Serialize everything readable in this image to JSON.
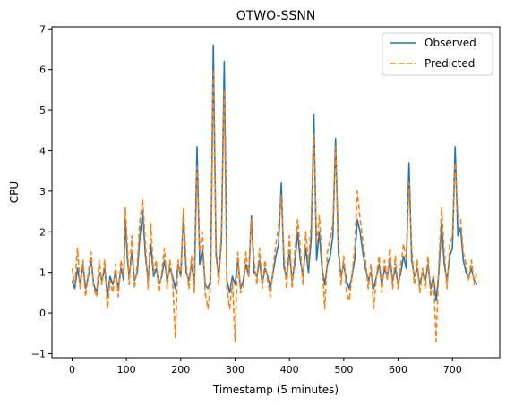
{
  "chart_data": {
    "type": "line",
    "title": "OTWO-SSNN",
    "xlabel": "Timestamp (5 minutes)",
    "ylabel": "CPU",
    "xlim": [
      -37,
      787
    ],
    "ylim": [
      -1.1,
      7.05
    ],
    "xticks": [
      0,
      100,
      200,
      300,
      400,
      500,
      600,
      700
    ],
    "yticks": [
      -1,
      0,
      1,
      2,
      3,
      4,
      5,
      6,
      7
    ],
    "grid": false,
    "legend_position": "top-right",
    "series": [
      {
        "name": "Observed",
        "color": "#1f77b4",
        "style": "solid",
        "points": [
          [
            0,
            0.8
          ],
          [
            5,
            0.6
          ],
          [
            10,
            1.1
          ],
          [
            15,
            0.7
          ],
          [
            20,
            1.2
          ],
          [
            25,
            0.6
          ],
          [
            30,
            0.9
          ],
          [
            35,
            1.3
          ],
          [
            40,
            0.7
          ],
          [
            45,
            0.5
          ],
          [
            50,
            1.0
          ],
          [
            55,
            0.8
          ],
          [
            60,
            1.1
          ],
          [
            65,
            0.4
          ],
          [
            70,
            0.9
          ],
          [
            75,
            0.7
          ],
          [
            80,
            1.0
          ],
          [
            85,
            0.6
          ],
          [
            90,
            1.1
          ],
          [
            95,
            0.8
          ],
          [
            98,
            2.3
          ],
          [
            102,
            1.3
          ],
          [
            105,
            0.9
          ],
          [
            110,
            1.5
          ],
          [
            115,
            0.8
          ],
          [
            120,
            1.0
          ],
          [
            125,
            1.9
          ],
          [
            130,
            2.5
          ],
          [
            135,
            1.4
          ],
          [
            140,
            0.8
          ],
          [
            145,
            1.7
          ],
          [
            150,
            0.9
          ],
          [
            155,
            1.1
          ],
          [
            160,
            0.7
          ],
          [
            165,
            0.9
          ],
          [
            170,
            1.3
          ],
          [
            175,
            0.8
          ],
          [
            180,
            1.1
          ],
          [
            185,
            0.9
          ],
          [
            190,
            0.6
          ],
          [
            195,
            1.2
          ],
          [
            200,
            0.9
          ],
          [
            205,
            2.4
          ],
          [
            210,
            1.0
          ],
          [
            215,
            0.8
          ],
          [
            220,
            1.2
          ],
          [
            225,
            0.7
          ],
          [
            230,
            4.1
          ],
          [
            235,
            1.2
          ],
          [
            240,
            1.6
          ],
          [
            245,
            0.7
          ],
          [
            250,
            0.6
          ],
          [
            255,
            0.8
          ],
          [
            260,
            6.6
          ],
          [
            265,
            1.4
          ],
          [
            270,
            0.9
          ],
          [
            275,
            1.8
          ],
          [
            280,
            6.2
          ],
          [
            285,
            0.8
          ],
          [
            290,
            0.5
          ],
          [
            295,
            0.9
          ],
          [
            300,
            0.7
          ],
          [
            305,
            1.3
          ],
          [
            310,
            0.6
          ],
          [
            315,
            0.8
          ],
          [
            320,
            1.2
          ],
          [
            325,
            0.9
          ],
          [
            330,
            2.4
          ],
          [
            335,
            1.0
          ],
          [
            340,
            0.9
          ],
          [
            345,
            1.3
          ],
          [
            350,
            0.7
          ],
          [
            355,
            1.1
          ],
          [
            360,
            0.9
          ],
          [
            365,
            0.6
          ],
          [
            370,
            1.0
          ],
          [
            375,
            1.4
          ],
          [
            380,
            1.7
          ],
          [
            385,
            3.2
          ],
          [
            390,
            1.1
          ],
          [
            395,
            0.9
          ],
          [
            400,
            1.5
          ],
          [
            405,
            0.8
          ],
          [
            410,
            1.2
          ],
          [
            415,
            2.0
          ],
          [
            420,
            1.3
          ],
          [
            425,
            0.9
          ],
          [
            430,
            1.6
          ],
          [
            435,
            1.0
          ],
          [
            440,
            1.8
          ],
          [
            445,
            4.9
          ],
          [
            450,
            1.3
          ],
          [
            455,
            2.0
          ],
          [
            460,
            1.1
          ],
          [
            465,
            0.7
          ],
          [
            470,
            1.2
          ],
          [
            475,
            1.4
          ],
          [
            480,
            1.9
          ],
          [
            485,
            4.3
          ],
          [
            490,
            1.5
          ],
          [
            495,
            0.9
          ],
          [
            500,
            1.2
          ],
          [
            505,
            0.8
          ],
          [
            510,
            0.6
          ],
          [
            515,
            0.9
          ],
          [
            520,
            1.3
          ],
          [
            525,
            2.3
          ],
          [
            530,
            2.0
          ],
          [
            535,
            1.5
          ],
          [
            540,
            1.1
          ],
          [
            545,
            0.8
          ],
          [
            550,
            1.0
          ],
          [
            555,
            0.6
          ],
          [
            560,
            0.9
          ],
          [
            565,
            1.2
          ],
          [
            570,
            0.7
          ],
          [
            575,
            1.1
          ],
          [
            580,
            0.9
          ],
          [
            585,
            1.3
          ],
          [
            590,
            0.8
          ],
          [
            595,
            1.1
          ],
          [
            600,
            0.7
          ],
          [
            605,
            1.0
          ],
          [
            610,
            1.4
          ],
          [
            615,
            1.1
          ],
          [
            620,
            3.7
          ],
          [
            625,
            1.3
          ],
          [
            630,
            0.9
          ],
          [
            635,
            1.1
          ],
          [
            640,
            0.7
          ],
          [
            645,
            1.0
          ],
          [
            650,
            0.8
          ],
          [
            655,
            1.2
          ],
          [
            660,
            0.6
          ],
          [
            665,
            0.9
          ],
          [
            670,
            0.3
          ],
          [
            675,
            1.0
          ],
          [
            680,
            2.2
          ],
          [
            685,
            1.2
          ],
          [
            690,
            0.8
          ],
          [
            695,
            1.4
          ],
          [
            700,
            1.6
          ],
          [
            705,
            4.1
          ],
          [
            710,
            1.9
          ],
          [
            715,
            2.1
          ],
          [
            720,
            1.3
          ],
          [
            725,
            1.0
          ],
          [
            730,
            0.9
          ],
          [
            735,
            1.1
          ],
          [
            740,
            0.8
          ],
          [
            745,
            0.7
          ]
        ]
      },
      {
        "name": "Predicted",
        "color": "#ff7f0e",
        "style": "dashed",
        "points": [
          [
            0,
            1.1
          ],
          [
            5,
            0.7
          ],
          [
            10,
            1.6
          ],
          [
            15,
            0.6
          ],
          [
            20,
            1.3
          ],
          [
            25,
            0.4
          ],
          [
            30,
            1.0
          ],
          [
            35,
            1.5
          ],
          [
            40,
            0.6
          ],
          [
            45,
            0.4
          ],
          [
            50,
            1.3
          ],
          [
            55,
            0.7
          ],
          [
            60,
            1.3
          ],
          [
            65,
            0.1
          ],
          [
            70,
            0.8
          ],
          [
            75,
            0.5
          ],
          [
            80,
            1.2
          ],
          [
            85,
            0.4
          ],
          [
            90,
            1.3
          ],
          [
            95,
            0.9
          ],
          [
            98,
            2.6
          ],
          [
            102,
            1.6
          ],
          [
            105,
            0.7
          ],
          [
            110,
            1.9
          ],
          [
            115,
            0.6
          ],
          [
            120,
            1.2
          ],
          [
            125,
            2.3
          ],
          [
            130,
            2.8
          ],
          [
            135,
            1.7
          ],
          [
            140,
            0.6
          ],
          [
            145,
            2.2
          ],
          [
            150,
            1.0
          ],
          [
            155,
            1.3
          ],
          [
            160,
            0.5
          ],
          [
            165,
            1.0
          ],
          [
            170,
            1.6
          ],
          [
            175,
            0.6
          ],
          [
            180,
            1.3
          ],
          [
            185,
            0.8
          ],
          [
            190,
            -0.6
          ],
          [
            195,
            1.3
          ],
          [
            200,
            0.9
          ],
          [
            205,
            2.6
          ],
          [
            210,
            1.2
          ],
          [
            215,
            0.6
          ],
          [
            220,
            1.4
          ],
          [
            225,
            0.5
          ],
          [
            230,
            3.6
          ],
          [
            235,
            1.5
          ],
          [
            240,
            2.0
          ],
          [
            245,
            0.5
          ],
          [
            250,
            0.1
          ],
          [
            255,
            0.7
          ],
          [
            260,
            6.0
          ],
          [
            265,
            1.6
          ],
          [
            270,
            0.7
          ],
          [
            275,
            2.1
          ],
          [
            280,
            5.5
          ],
          [
            285,
            0.6
          ],
          [
            290,
            0.1
          ],
          [
            295,
            0.8
          ],
          [
            300,
            -0.7
          ],
          [
            305,
            1.5
          ],
          [
            310,
            0.5
          ],
          [
            315,
            0.6
          ],
          [
            320,
            1.5
          ],
          [
            325,
            0.9
          ],
          [
            330,
            2.3
          ],
          [
            335,
            1.3
          ],
          [
            340,
            0.7
          ],
          [
            345,
            1.6
          ],
          [
            350,
            0.6
          ],
          [
            355,
            1.3
          ],
          [
            360,
            0.8
          ],
          [
            365,
            0.4
          ],
          [
            370,
            1.1
          ],
          [
            375,
            1.7
          ],
          [
            380,
            2.1
          ],
          [
            385,
            2.9
          ],
          [
            390,
            1.4
          ],
          [
            395,
            0.6
          ],
          [
            400,
            1.9
          ],
          [
            405,
            0.6
          ],
          [
            410,
            1.5
          ],
          [
            415,
            2.3
          ],
          [
            420,
            1.6
          ],
          [
            425,
            0.7
          ],
          [
            430,
            2.0
          ],
          [
            435,
            1.2
          ],
          [
            440,
            2.2
          ],
          [
            445,
            4.4
          ],
          [
            450,
            1.7
          ],
          [
            455,
            2.4
          ],
          [
            460,
            1.3
          ],
          [
            465,
            0.1
          ],
          [
            470,
            1.5
          ],
          [
            475,
            1.8
          ],
          [
            480,
            2.2
          ],
          [
            485,
            4.1
          ],
          [
            490,
            1.8
          ],
          [
            495,
            0.7
          ],
          [
            500,
            1.4
          ],
          [
            505,
            0.5
          ],
          [
            510,
            0.3
          ],
          [
            515,
            0.9
          ],
          [
            520,
            1.6
          ],
          [
            525,
            3.0
          ],
          [
            530,
            2.3
          ],
          [
            535,
            1.8
          ],
          [
            540,
            1.3
          ],
          [
            545,
            0.6
          ],
          [
            550,
            1.2
          ],
          [
            555,
            0.1
          ],
          [
            560,
            0.9
          ],
          [
            565,
            1.4
          ],
          [
            570,
            0.5
          ],
          [
            575,
            1.3
          ],
          [
            580,
            0.8
          ],
          [
            585,
            1.6
          ],
          [
            590,
            0.6
          ],
          [
            595,
            1.4
          ],
          [
            600,
            0.6
          ],
          [
            605,
            1.2
          ],
          [
            610,
            1.7
          ],
          [
            615,
            1.3
          ],
          [
            620,
            3.2
          ],
          [
            625,
            1.6
          ],
          [
            630,
            0.7
          ],
          [
            635,
            1.3
          ],
          [
            640,
            0.5
          ],
          [
            645,
            1.1
          ],
          [
            650,
            0.6
          ],
          [
            655,
            1.4
          ],
          [
            660,
            0.4
          ],
          [
            665,
            0.9
          ],
          [
            670,
            -0.7
          ],
          [
            675,
            1.2
          ],
          [
            680,
            2.6
          ],
          [
            685,
            1.5
          ],
          [
            690,
            0.6
          ],
          [
            695,
            1.7
          ],
          [
            700,
            1.9
          ],
          [
            705,
            3.7
          ],
          [
            710,
            2.4
          ],
          [
            715,
            2.3
          ],
          [
            720,
            1.5
          ],
          [
            725,
            1.2
          ],
          [
            730,
            0.8
          ],
          [
            735,
            1.3
          ],
          [
            740,
            0.7
          ],
          [
            745,
            1.0
          ]
        ]
      }
    ]
  }
}
